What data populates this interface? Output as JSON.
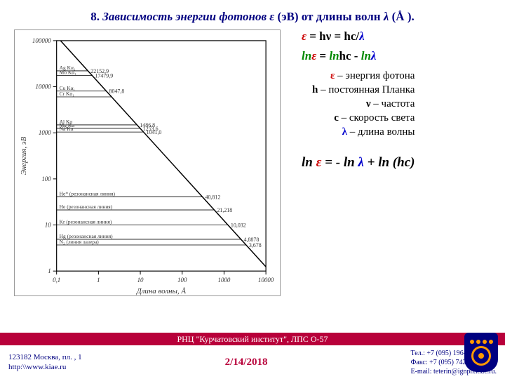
{
  "title": {
    "number": "8.",
    "text_a": "Зависимость энергии фотонов",
    "eps": "ε",
    "text_b": "(эВ) от длины волн",
    "lam": "λ",
    "text_c": "(Å )."
  },
  "chart": {
    "xlabel": "Длина волны, Å",
    "ylabel": "Энергия, эВ",
    "x_ticks": [
      "0,1",
      "1",
      "10",
      "100",
      "1000",
      "10000"
    ],
    "y_ticks": [
      "1",
      "10",
      "100",
      "1000",
      "10000",
      "100000"
    ],
    "line_color": "#000000",
    "bg": "#ffffff",
    "grid_color": "#ffffff",
    "annotations": [
      {
        "label": "22152,9",
        "y_log": 4.345,
        "left_label": "Ag Kα₁"
      },
      {
        "label": "17479,9",
        "y_log": 4.243,
        "left_label": "Mo Kα₁"
      },
      {
        "label": "8047,8",
        "y_log": 3.906,
        "left_label": "Cu Kα₁"
      },
      {
        "label": "",
        "y_log": 3.78,
        "left_label": "Cr Kα₁"
      },
      {
        "label": "1486,8",
        "y_log": 3.172,
        "left_label": "Al Kα"
      },
      {
        "label": "1253,6",
        "y_log": 3.098,
        "left_label": "Mg Kα"
      },
      {
        "label": "1041,0",
        "y_log": 3.017,
        "left_label": "Na Kα"
      },
      {
        "label": "40,812",
        "y_log": 1.611,
        "left_label": "He* (резонансная линия)"
      },
      {
        "label": "21,218",
        "y_log": 1.327,
        "left_label": "He (резонансная линия)"
      },
      {
        "label": "10,032",
        "y_log": 1.001,
        "left_label": "Kr (резонансная линия)"
      },
      {
        "label": "4,8878",
        "y_log": 0.689,
        "left_label": "Hg (резонансная линия)"
      },
      {
        "label": "3,678",
        "y_log": 0.566,
        "left_label": "N₂ (линия лазера)"
      }
    ]
  },
  "formulas": {
    "f1_eps": "ε",
    "f1_eq": " = hν = hc/",
    "f1_lam": "λ",
    "f2_ln": "ln",
    "f2_eps": "ε",
    "f2_eq": " = ",
    "f2_ln2": "ln",
    "f2_hc": "hc - ",
    "f2_ln3": "ln",
    "f2_lam": "λ",
    "defs": [
      {
        "sym": "ε",
        "color": "#cc0000",
        "text": " – энергия фотона"
      },
      {
        "sym": "h",
        "color": "#000000",
        "text": " – постоянная Планка"
      },
      {
        "sym": "ν",
        "color": "#000000",
        "text": " – частота"
      },
      {
        "sym": "c",
        "color": "#000000",
        "text": " – скорость света"
      },
      {
        "sym": "λ",
        "color": "#0000cc",
        "text": " – длина волны"
      }
    ],
    "final_ln1": "ln ",
    "final_eps": "ε",
    "final_eq": " = - ",
    "final_ln2": "ln ",
    "final_lam": "λ",
    "final_plus": " + ",
    "final_ln3": "ln (",
    "final_hc": "hc)"
  },
  "footer_band": "РНЦ \"Курчатовский институт\", ЛПС О-57",
  "footer": {
    "addr1": "123182 Москва, пл. , 1",
    "addr2": "http:\\\\www.kiae.ru",
    "date": "2/14/2018",
    "tel": "Тел.:    +7 (095) 196-9252,",
    "fax": "Факс:  +7 (095) 742-5868,",
    "email": "E-mail: teterin@ignph.kiae.ru."
  }
}
